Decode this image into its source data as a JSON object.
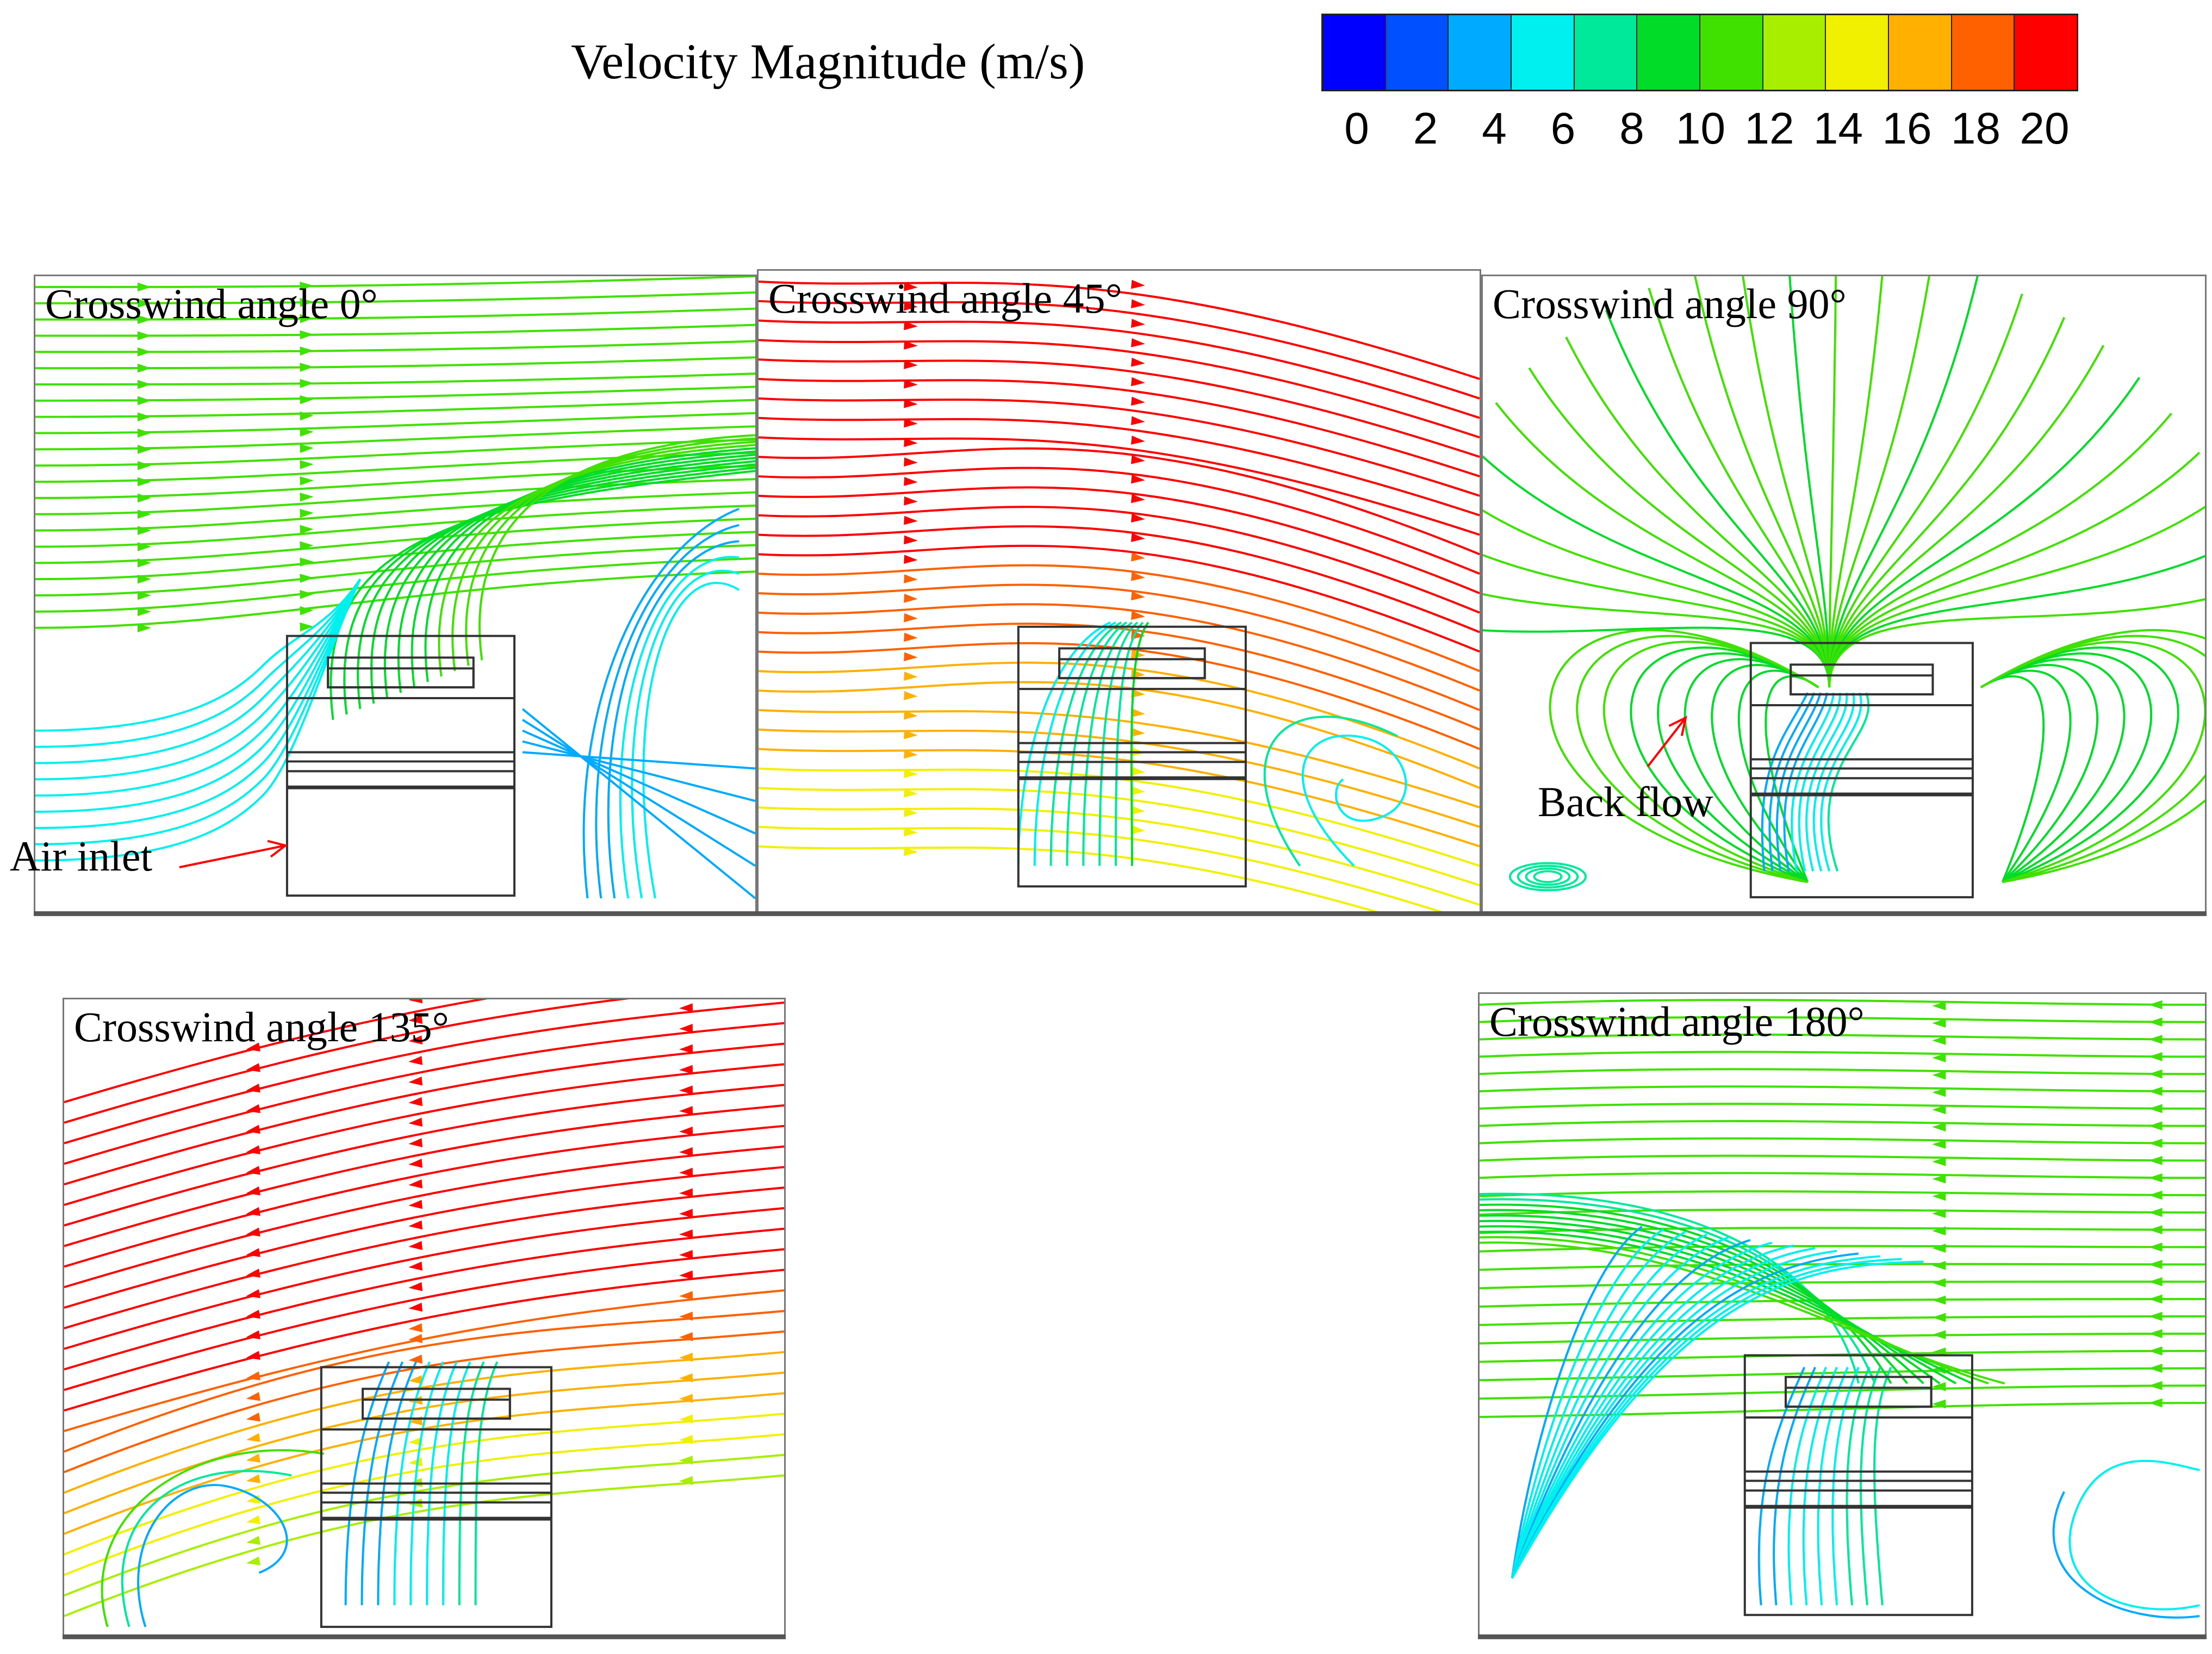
{
  "legend": {
    "title": "Velocity Magnitude (m/s)",
    "ticks": [
      "0",
      "2",
      "4",
      "6",
      "8",
      "10",
      "12",
      "14",
      "16",
      "18",
      "20"
    ],
    "colors": [
      "#0000ff",
      "#0050ff",
      "#00aaff",
      "#00f0f0",
      "#00e89a",
      "#00dc28",
      "#40e000",
      "#a8ee00",
      "#f0f000",
      "#ffb000",
      "#ff6000",
      "#ff0000"
    ]
  },
  "panels": [
    {
      "title": "Crosswind angle 0°",
      "inflow": "left"
    },
    {
      "title": "Crosswind angle 45°",
      "inflow": "left"
    },
    {
      "title": "Crosswind angle 90°",
      "inflow": "up"
    },
    {
      "title": "Crosswind angle 135°",
      "inflow": "right"
    },
    {
      "title": "Crosswind angle 180°",
      "inflow": "right"
    }
  ],
  "annotations": {
    "air_inlet": "Air inlet",
    "back_flow": "Back flow",
    "arrow_color": "#ff0000"
  }
}
